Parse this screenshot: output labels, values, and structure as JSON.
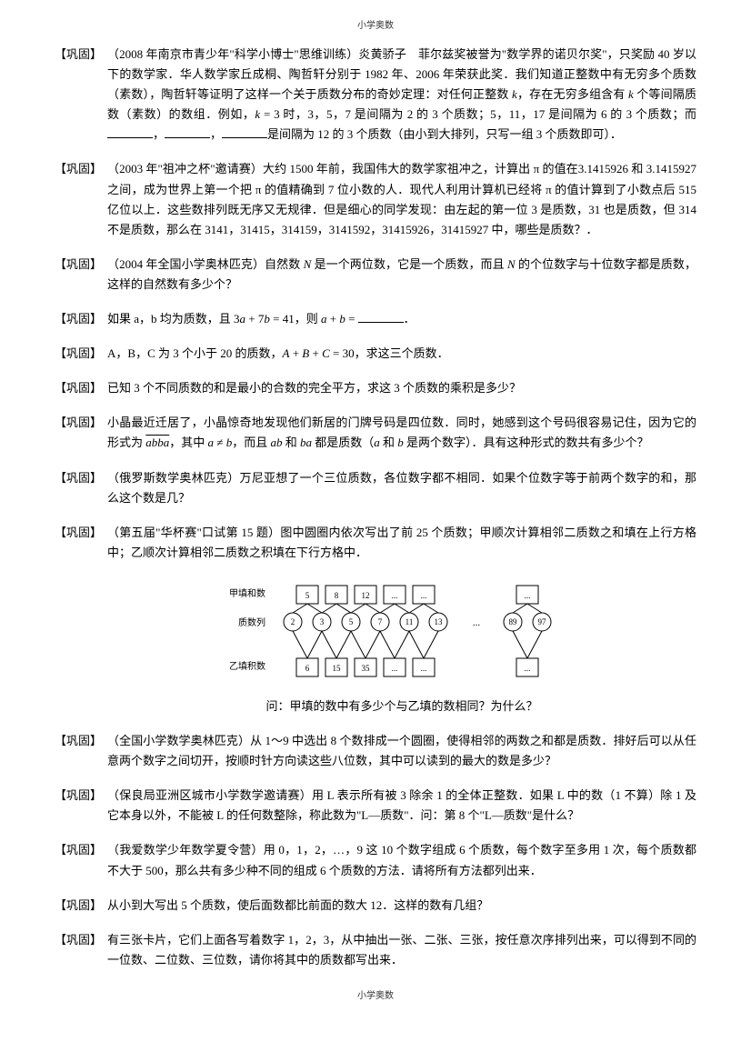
{
  "header": "小学奥数",
  "footer": "小学奥数",
  "tag": "【巩固】",
  "problems": [
    {
      "text": "（2008 年南京市青少年\"科学小博士\"思维训练）炎黄骄子　菲尔兹奖被誉为\"数学界的诺贝尔奖\"，只奖励 40 岁以下的数学家．华人数学家丘成桐、陶哲轩分别于 1982 年、2006 年荣获此奖．我们知道正整数中有无穷多个质数（素数），陶哲轩等证明了这样一个关于质数分布的奇妙定理：对任何正整数 k，存在无穷多组含有 k 个等间隔质数（素数）的数组．例如，k = 3 时，3，5，7 是间隔为 2 的 3 个质数；5，11，17 是间隔为 6 的 3 个质数；而__，__，__是间隔为 12 的 3 个质数（由小到大排列，只写一组 3 个质数即可）．"
    },
    {
      "text": "（2003 年\"祖冲之杯\"邀请赛）大约 1500 年前，我国伟大的数学家祖冲之，计算出 π 的值在3.1415926 和 3.1415927 之间，成为世界上第一个把 π 的值精确到 7 位小数的人．现代人利用计算机已经将 π 的值计算到了小数点后 515 亿位以上．这些数排列既无序又无规律．但是细心的同学发现：由左起的第一位 3 是质数，31 也是质数，但 314 不是质数，那么在 3141，31415，314159，3141592，31415926，31415927 中，哪些是质数？．"
    },
    {
      "text": "（2004 年全国小学奥林匹克）自然数 N 是一个两位数，它是一个质数，而且 N 的个位数字与十位数字都是质数，这样的自然数有多少个？"
    },
    {
      "text": "如果 a，b 均为质数，且 3a + 7b = 41，则 a + b = __．"
    },
    {
      "text": "A，B，C 为 3 个小于 20 的质数，A + B + C = 30，求这三个质数．"
    },
    {
      "text": "已知 3 个不同质数的和是最小的合数的完全平方，求这 3 个质数的乘积是多少？"
    },
    {
      "text": "小晶最近迁居了，小晶惊奇地发现他们新居的门牌号码是四位数．同时，她感到这个号码很容易记住，因为它的形式为 abba，其中 a ≠ b，而且 ab 和 ba 都是质数（a 和 b 是两个数字）．具有这种形式的数共有多少个？",
      "overline": "abba"
    },
    {
      "text": "（俄罗斯数学奥林匹克）万尼亚想了一个三位质数，各位数字都不相同．如果个位数字等于前两个数字的和，那么这个数是几？"
    },
    {
      "text": "（第五届\"华杯赛\"口试第 15 题）图中圆圈内依次写出了前 25 个质数；甲顺次计算相邻二质数之和填在上行方格中；乙顺次计算相邻二质数之积填在下行方格中．",
      "hasDiagram": true,
      "caption": "问：甲填的数中有多少个与乙填的数相同？为什么？"
    },
    {
      "text": "（全国小学数学奥林匹克）从 1～9 中选出 8 个数排成一个圆圈，使得相邻的两数之和都是质数．排好后可以从任意两个数字之间切开，按顺时针方向读这些八位数，其中可以读到的最大的数是多少？"
    },
    {
      "text": "（保良局亚洲区城市小学数学邀请赛）用 L 表示所有被 3 除余 1 的全体正整数．如果 L 中的数（1 不算）除 1 及它本身以外，不能被 L 的任何数整除，称此数为\"L—质数\"．问：第 8 个\"L—质数\"是什么？"
    },
    {
      "text": "（我爱数学少年数学夏令营）用 0，1，2，…，9 这 10 个数字组成 6 个质数，每个数字至多用 1 次，每个质数都不大于 500，那么共有多少种不同的组成 6 个质数的方法．请将所有方法都列出来．"
    },
    {
      "text": "从小到大写出 5 个质数，使后面数都比前面的数大 12．这样的数有几组？"
    },
    {
      "text": "有三张卡片，它们上面各写着数字 1，2，3，从中抽出一张、二张、三张，按任意次序排列出来，可以得到不同的一位数、二位数、三位数，请你将其中的质数都写出来．"
    }
  ],
  "diagram": {
    "row1Label": "甲填和数",
    "row2Label": "质数列",
    "row3Label": "乙填积数",
    "sums": [
      "5",
      "8",
      "12",
      "...",
      "...",
      "...",
      "..."
    ],
    "primes": [
      "2",
      "3",
      "5",
      "7",
      "11",
      "13",
      "89",
      "97"
    ],
    "products": [
      "6",
      "15",
      "35",
      "...",
      "...",
      "..."
    ],
    "boxFill": "#ffffff",
    "boxStroke": "#000000",
    "circleFill": "#ffffff",
    "circleStroke": "#000000",
    "lineColor": "#000000",
    "fontSize": 9
  }
}
